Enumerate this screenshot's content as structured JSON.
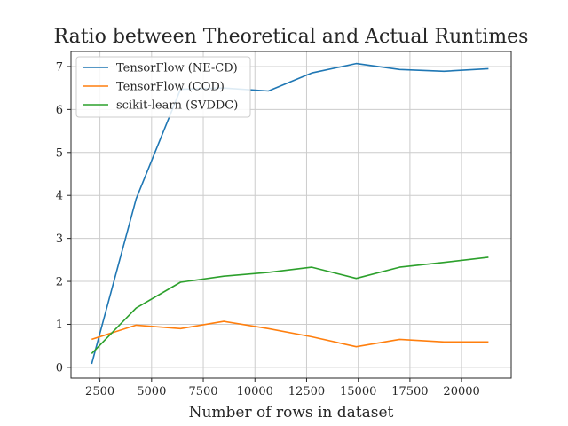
{
  "chart_data": {
    "type": "line",
    "title": "Ratio between Theoretical and Actual Runtimes",
    "xlabel": "Number of rows in dataset",
    "ylabel": "",
    "xlim": [
      1100,
      22400
    ],
    "ylim": [
      -0.25,
      7.35
    ],
    "xticks": [
      2500,
      5000,
      7500,
      10000,
      12500,
      15000,
      17500,
      20000
    ],
    "yticks": [
      0,
      1,
      2,
      3,
      4,
      5,
      6,
      7
    ],
    "grid": true,
    "legend_position": "top-left",
    "x": [
      2100,
      4250,
      6400,
      8500,
      10650,
      12750,
      14900,
      17000,
      19150,
      21300
    ],
    "series": [
      {
        "name": "TensorFlow (NE-CD)",
        "color": "#1f77b4",
        "values": [
          0.08,
          3.92,
          6.47,
          6.5,
          6.43,
          6.85,
          7.07,
          6.93,
          6.89,
          6.95
        ]
      },
      {
        "name": "TensorFlow (COD)",
        "color": "#ff7f0e",
        "values": [
          0.65,
          0.98,
          0.9,
          1.07,
          0.9,
          0.71,
          0.48,
          0.65,
          0.59,
          0.59
        ]
      },
      {
        "name": "scikit-learn (SVDDC)",
        "color": "#2ca02c",
        "values": [
          0.32,
          1.38,
          1.98,
          2.12,
          2.21,
          2.33,
          2.07,
          2.33,
          2.44,
          2.56
        ]
      }
    ]
  }
}
